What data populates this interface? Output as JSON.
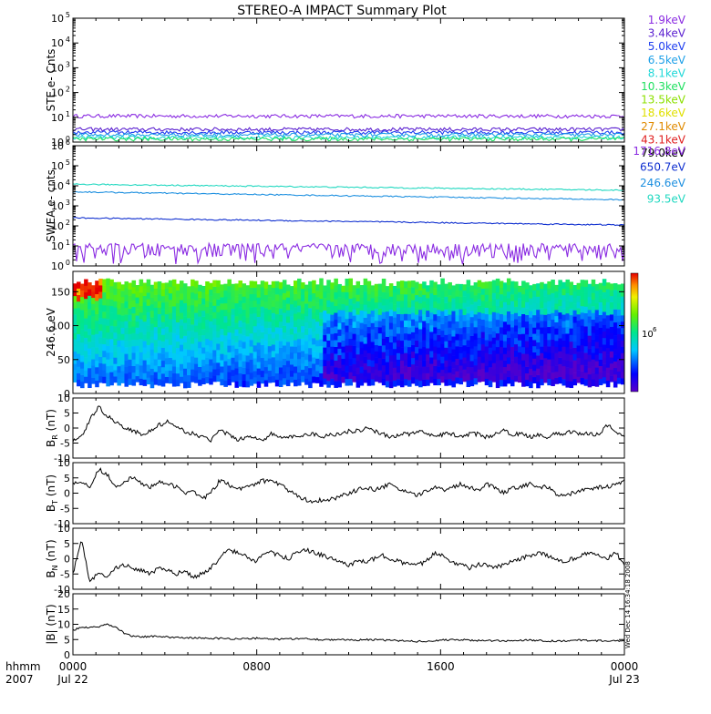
{
  "title": "STEREO-A IMPACT Summary Plot",
  "stamp": "Wed Dec 14 16:34:18 2008",
  "colors": {
    "e1": "#8a2be2",
    "e2": "#5a1fd0",
    "e3": "#1f3ff0",
    "e4": "#1ea0e8",
    "e5": "#20d8d8",
    "e6": "#20e060",
    "e7": "#8ce000",
    "e8": "#e0e000",
    "e9": "#e08a00",
    "e10": "#e02020",
    "s1": "#8a2be2",
    "s2": "#1030d0",
    "s3": "#1e90e0",
    "s4": "#20d8c0"
  },
  "chart_data": [
    {
      "id": "ste",
      "type": "line",
      "ylabel": "STE e- Cnts",
      "y_scale": "log",
      "ylim": [
        1,
        100000
      ],
      "yticks": [
        "10^0",
        "10^1",
        "10^2",
        "10^3",
        "10^4",
        "10^5"
      ],
      "legend": [
        "1.9keV",
        "3.4keV",
        "5.0keV",
        "6.5keV",
        "8.1keV",
        "10.3keV",
        "13.5keV",
        "18.6keV",
        "27.1keV",
        "43.1keV",
        "79.0keV"
      ],
      "series": [
        {
          "name": "1.9keV",
          "level": 11,
          "color": "e1"
        },
        {
          "name": "3.4keV",
          "level": 3.2,
          "color": "e2"
        },
        {
          "name": "5.0keV",
          "level": 2.4,
          "color": "e3"
        },
        {
          "name": "6.5keV",
          "level": 1.9,
          "color": "e4"
        },
        {
          "name": "8.1keV",
          "level": 1.5,
          "color": "e5"
        },
        {
          "name": "10.3keV",
          "level": 1.3,
          "color": "e6"
        }
      ]
    },
    {
      "id": "swea",
      "type": "line",
      "ylabel": "SWEA e- cnts",
      "y_scale": "log",
      "ylim": [
        1,
        1000000
      ],
      "yticks": [
        "10^0",
        "10^1",
        "10^2",
        "10^3",
        "10^4",
        "10^5",
        "10^6"
      ],
      "legend": [
        "1716.8eV",
        "650.7eV",
        "246.6eV",
        "93.5eV"
      ],
      "series": [
        {
          "name": "93.5eV",
          "start": 12000,
          "end": 6000,
          "color": "s4"
        },
        {
          "name": "246.6eV",
          "start": 5000,
          "end": 2000,
          "color": "s3"
        },
        {
          "name": "650.7eV",
          "start": 250,
          "end": 110,
          "color": "s2"
        },
        {
          "name": "1716.8eV",
          "start": 4,
          "end": 4,
          "color": "s1"
        }
      ]
    },
    {
      "id": "pad",
      "type": "heatmap",
      "ylabel": "246.6 eV",
      "ylim": [
        0,
        180
      ],
      "yticks": [
        0,
        50,
        100,
        150
      ],
      "colorbar_label": "10^6"
    },
    {
      "id": "br",
      "type": "line",
      "ylabel": "B_R (nT)",
      "ylim": [
        -10,
        10
      ],
      "yticks": [
        -10,
        -5,
        0,
        5,
        10
      ],
      "values": [
        -4,
        -3,
        3,
        7,
        4,
        2,
        0,
        -1,
        -2,
        -1,
        1,
        2,
        0,
        -1,
        -2,
        -3,
        -4,
        -1,
        -2,
        -4,
        -3,
        -3,
        -4,
        -2,
        -3,
        -3,
        -3,
        -2,
        -2,
        -3,
        -2,
        -2,
        -1,
        -1,
        0,
        -1,
        -2,
        -3,
        -2,
        -2,
        -1,
        -2,
        -3,
        -2,
        -2,
        -3,
        -2,
        -2,
        -3,
        -2,
        -1,
        -2,
        -2,
        -3,
        -2,
        -3,
        -2,
        -2,
        -1,
        -2,
        -2,
        -2,
        1,
        -1,
        -3
      ]
    },
    {
      "id": "bt",
      "type": "line",
      "ylabel": "B_T (nT)",
      "ylim": [
        -10,
        10
      ],
      "yticks": [
        -10,
        -5,
        0,
        5,
        10
      ],
      "values": [
        3,
        4,
        2,
        8,
        6,
        2,
        4,
        5,
        3,
        2,
        4,
        3,
        2,
        0,
        1,
        -2,
        0,
        4,
        3,
        1,
        2,
        3,
        4,
        4,
        3,
        1,
        -1,
        -2,
        -3,
        -2,
        -2,
        -1,
        0,
        1,
        2,
        1,
        2,
        3,
        1,
        0,
        -1,
        1,
        2,
        1,
        2,
        3,
        2,
        1,
        3,
        2,
        0,
        2,
        2,
        3,
        2,
        2,
        0,
        -1,
        0,
        1,
        1,
        2,
        2,
        3,
        4
      ]
    },
    {
      "id": "bn",
      "type": "line",
      "ylabel": "B_N (nT)",
      "ylim": [
        -10,
        10
      ],
      "yticks": [
        -10,
        -5,
        0,
        5,
        10
      ],
      "values": [
        -5,
        6,
        -8,
        -4,
        -6,
        -3,
        -2,
        -3,
        -4,
        -5,
        -3,
        -4,
        -5,
        -4,
        -6,
        -5,
        -3,
        0,
        3,
        2,
        1,
        -1,
        1,
        2,
        1,
        0,
        2,
        3,
        2,
        1,
        0,
        -1,
        -2,
        -1,
        -1,
        0,
        1,
        0,
        -1,
        -2,
        -2,
        -1,
        2,
        1,
        -1,
        -2,
        -3,
        -2,
        -2,
        -3,
        -2,
        -1,
        0,
        1,
        2,
        1,
        0,
        -1,
        0,
        1,
        2,
        1,
        0,
        2,
        -2
      ]
    },
    {
      "id": "bm",
      "type": "line",
      "ylabel": "|B| (nT)",
      "ylim": [
        0,
        20
      ],
      "yticks": [
        0,
        5,
        10,
        15,
        20
      ],
      "values": [
        8,
        9,
        9,
        9,
        10,
        9,
        7,
        6,
        6,
        6,
        6,
        5.8,
        5.8,
        5.6,
        5.5,
        5.5,
        5.4,
        5.4,
        5.3,
        5.3,
        5.2,
        5.4,
        5.5,
        5.2,
        5.1,
        5.2,
        5.3,
        5.3,
        5.1,
        5.0,
        5.0,
        4.9,
        4.8,
        4.9,
        5.0,
        4.9,
        4.8,
        4.7,
        4.6,
        4.6,
        4.4,
        4.5,
        4.6,
        4.8,
        5.0,
        4.9,
        4.8,
        4.7,
        4.6,
        4.6,
        4.5,
        4.6,
        4.8,
        4.9,
        4.7,
        4.6,
        4.5,
        4.6,
        4.7,
        4.8,
        4.7,
        4.6,
        4.6,
        4.5,
        4.4
      ]
    }
  ],
  "xaxis": {
    "left_label_1": "hhmm",
    "left_label_2": "2007",
    "ticks": [
      {
        "pos": 0.0,
        "time": "0000",
        "date": "Jul 22"
      },
      {
        "pos": 0.3333,
        "time": "0800",
        "date": ""
      },
      {
        "pos": 0.6667,
        "time": "1600",
        "date": ""
      },
      {
        "pos": 1.0,
        "time": "0000",
        "date": "Jul 23"
      }
    ]
  }
}
